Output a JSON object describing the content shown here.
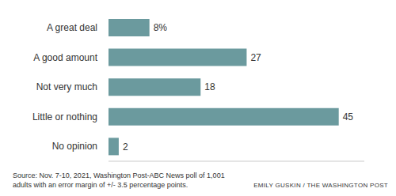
{
  "chart_data": {
    "type": "bar",
    "orientation": "horizontal",
    "categories": [
      "A great deal",
      "A good amount",
      "Not very much",
      "Little or nothing",
      "No opinion"
    ],
    "values": [
      8,
      27,
      18,
      45,
      2
    ],
    "value_labels": [
      "8%",
      "27",
      "18",
      "45",
      "2"
    ],
    "data_labels": true,
    "color": "#6b9a9e",
    "xlim": [
      0,
      50
    ],
    "tick_labels": "y",
    "grid": false,
    "source": "Source: Nov. 7-10, 2021, Washington Post-ABC News poll of 1,001 adults with an error margin of +/- 3.5 percentage points.",
    "credit": "EMILY GUSKIN / THE WASHINGTON POST"
  }
}
